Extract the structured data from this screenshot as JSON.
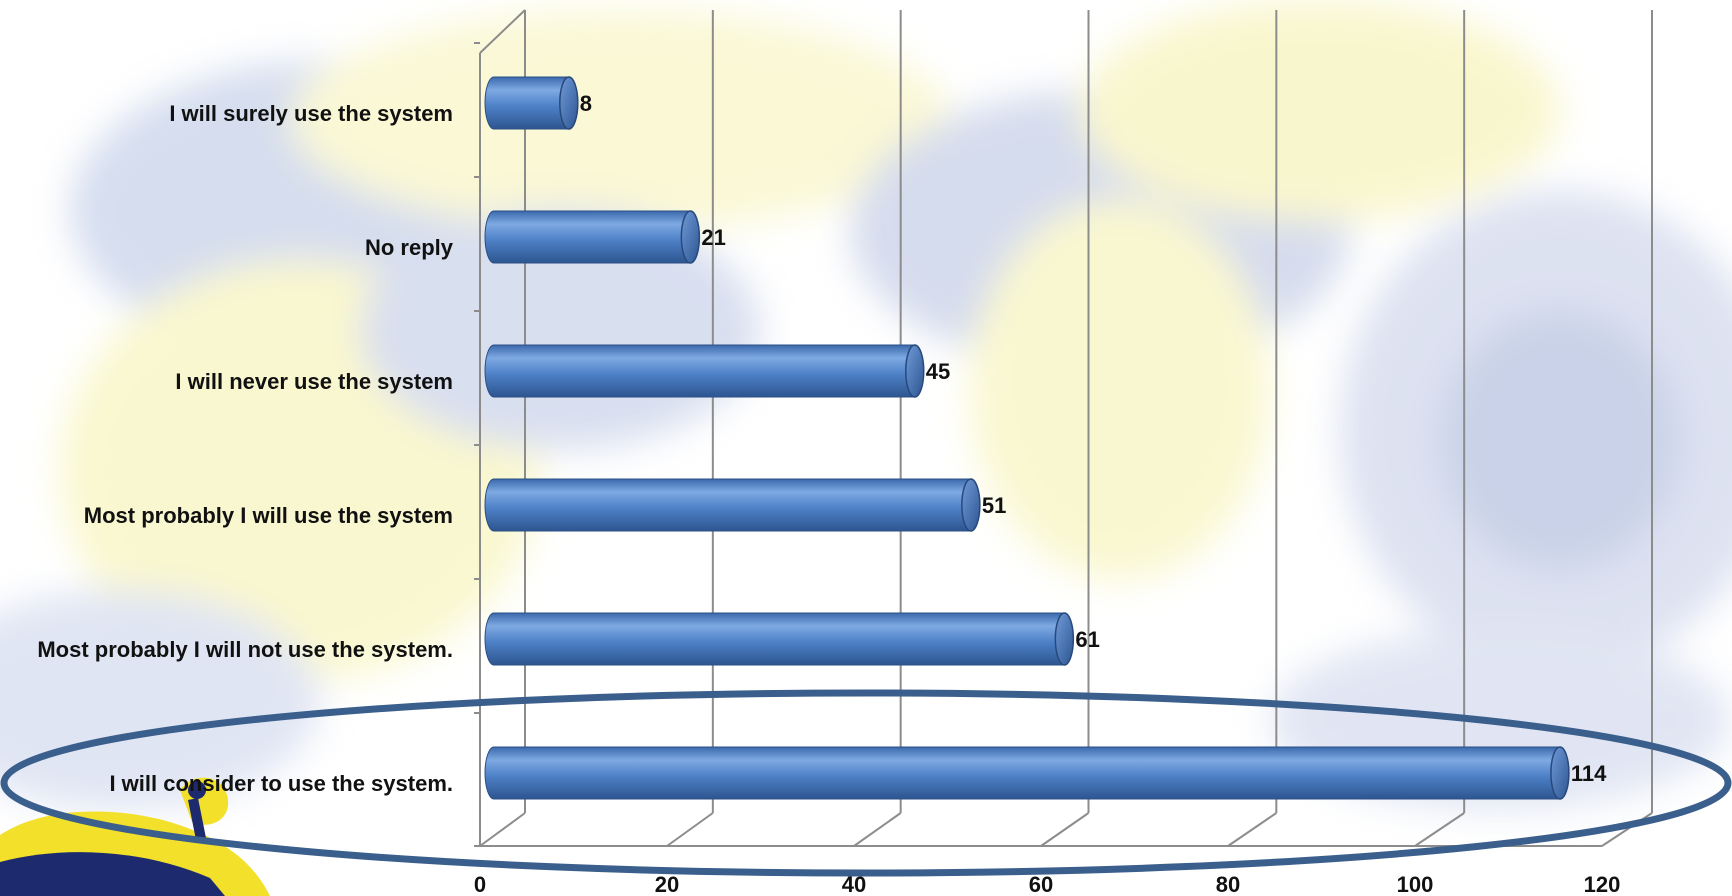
{
  "chart_data": {
    "type": "bar",
    "orientation": "horizontal",
    "style": "3d-cylinder",
    "categories": [
      "I will surely use the system",
      "No reply",
      "I will never use the system",
      "Most probably I will use the system",
      "Most probably I will not use the system.",
      "I will consider to use the system."
    ],
    "values": [
      8,
      21,
      45,
      51,
      61,
      114
    ],
    "xlim": [
      0,
      120
    ],
    "xticks": [
      0,
      20,
      40,
      60,
      80,
      100,
      120
    ],
    "grid": true,
    "legend": "none",
    "highlighted_category": "I will consider to use the system."
  },
  "colors": {
    "bar": "#4a7cc4",
    "bar_light": "#7ea9e2",
    "bar_dark": "#2d5590",
    "highlight_ellipse": "#3b5f8c",
    "grid": "#8c8c8c",
    "background_blue": "#8a9fcf",
    "background_yellow": "#f3f09a"
  }
}
